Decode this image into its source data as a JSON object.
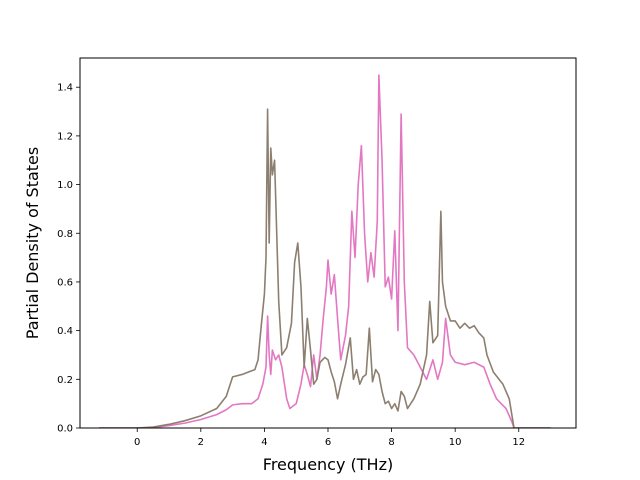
{
  "chart_data": {
    "type": "line",
    "xlabel": "Frequency (THz)",
    "ylabel": "Partial Density of States",
    "xlim": [
      -1.8,
      13.8
    ],
    "ylim": [
      0.0,
      1.52
    ],
    "xticks": [
      0,
      2,
      4,
      6,
      8,
      10,
      12
    ],
    "xtick_labels": [
      "0",
      "2",
      "4",
      "6",
      "8",
      "10",
      "12"
    ],
    "yticks": [
      0.0,
      0.2,
      0.4,
      0.6,
      0.8,
      1.0,
      1.2,
      1.4
    ],
    "ytick_labels": [
      "0.0",
      "0.2",
      "0.4",
      "0.6",
      "0.8",
      "1.0",
      "1.2",
      "1.4"
    ],
    "grid": false,
    "colors": {
      "pink_series": "#e377c2",
      "pink_series_2": "#d470b0",
      "gray_series": "#8c7f70"
    },
    "series": [
      {
        "color": "#e377c2",
        "points": [
          [
            -1.2,
            0
          ],
          [
            0,
            0
          ],
          [
            0.5,
            0.002
          ],
          [
            1,
            0.01
          ],
          [
            1.5,
            0.02
          ],
          [
            2,
            0.035
          ],
          [
            2.5,
            0.055
          ],
          [
            2.8,
            0.075
          ],
          [
            3.0,
            0.095
          ],
          [
            3.3,
            0.1
          ],
          [
            3.6,
            0.1
          ],
          [
            3.8,
            0.12
          ],
          [
            3.95,
            0.18
          ],
          [
            4.05,
            0.25
          ],
          [
            4.1,
            0.46
          ],
          [
            4.15,
            0.3
          ],
          [
            4.2,
            0.22
          ],
          [
            4.25,
            0.32
          ],
          [
            4.35,
            0.28
          ],
          [
            4.45,
            0.3
          ],
          [
            4.55,
            0.25
          ],
          [
            4.7,
            0.12
          ],
          [
            4.8,
            0.08
          ],
          [
            5.0,
            0.1
          ],
          [
            5.15,
            0.18
          ],
          [
            5.25,
            0.26
          ],
          [
            5.35,
            0.22
          ],
          [
            5.45,
            0.17
          ],
          [
            5.55,
            0.3
          ],
          [
            5.65,
            0.2
          ],
          [
            5.75,
            0.3
          ],
          [
            5.85,
            0.45
          ],
          [
            5.95,
            0.58
          ],
          [
            6.0,
            0.69
          ],
          [
            6.1,
            0.55
          ],
          [
            6.2,
            0.63
          ],
          [
            6.3,
            0.45
          ],
          [
            6.4,
            0.28
          ],
          [
            6.55,
            0.38
          ],
          [
            6.65,
            0.5
          ],
          [
            6.75,
            0.89
          ],
          [
            6.85,
            0.7
          ],
          [
            6.95,
            1.0
          ],
          [
            7.05,
            1.16
          ],
          [
            7.15,
            0.8
          ],
          [
            7.25,
            0.6
          ],
          [
            7.35,
            0.72
          ],
          [
            7.45,
            0.62
          ],
          [
            7.55,
            0.85
          ],
          [
            7.6,
            1.45
          ],
          [
            7.7,
            1.1
          ],
          [
            7.8,
            0.58
          ],
          [
            7.9,
            0.62
          ],
          [
            8.0,
            0.53
          ],
          [
            8.1,
            0.81
          ],
          [
            8.2,
            0.4
          ],
          [
            8.3,
            1.29
          ],
          [
            8.4,
            0.6
          ],
          [
            8.5,
            0.33
          ],
          [
            8.7,
            0.3
          ],
          [
            8.9,
            0.25
          ],
          [
            9.1,
            0.2
          ],
          [
            9.3,
            0.28
          ],
          [
            9.45,
            0.2
          ],
          [
            9.6,
            0.27
          ],
          [
            9.7,
            0.45
          ],
          [
            9.85,
            0.3
          ],
          [
            10.0,
            0.27
          ],
          [
            10.3,
            0.26
          ],
          [
            10.6,
            0.27
          ],
          [
            10.9,
            0.25
          ],
          [
            11.1,
            0.18
          ],
          [
            11.3,
            0.12
          ],
          [
            11.6,
            0.08
          ],
          [
            11.8,
            0.02
          ],
          [
            11.85,
            0
          ],
          [
            13,
            0
          ]
        ]
      },
      {
        "color": "#8c7f70",
        "points": [
          [
            -1.2,
            0
          ],
          [
            0,
            0
          ],
          [
            0.5,
            0.004
          ],
          [
            1,
            0.015
          ],
          [
            1.5,
            0.03
          ],
          [
            2,
            0.05
          ],
          [
            2.5,
            0.08
          ],
          [
            2.8,
            0.13
          ],
          [
            3.0,
            0.21
          ],
          [
            3.3,
            0.22
          ],
          [
            3.5,
            0.23
          ],
          [
            3.7,
            0.24
          ],
          [
            3.8,
            0.28
          ],
          [
            3.9,
            0.42
          ],
          [
            4.0,
            0.55
          ],
          [
            4.05,
            0.7
          ],
          [
            4.1,
            1.31
          ],
          [
            4.15,
            0.76
          ],
          [
            4.2,
            1.15
          ],
          [
            4.25,
            1.04
          ],
          [
            4.32,
            1.1
          ],
          [
            4.45,
            0.52
          ],
          [
            4.55,
            0.3
          ],
          [
            4.7,
            0.33
          ],
          [
            4.85,
            0.43
          ],
          [
            4.95,
            0.68
          ],
          [
            5.05,
            0.76
          ],
          [
            5.15,
            0.58
          ],
          [
            5.25,
            0.25
          ],
          [
            5.35,
            0.45
          ],
          [
            5.45,
            0.32
          ],
          [
            5.55,
            0.18
          ],
          [
            5.65,
            0.2
          ],
          [
            5.75,
            0.27
          ],
          [
            5.9,
            0.29
          ],
          [
            6.0,
            0.28
          ],
          [
            6.1,
            0.23
          ],
          [
            6.2,
            0.19
          ],
          [
            6.3,
            0.12
          ],
          [
            6.4,
            0.18
          ],
          [
            6.55,
            0.26
          ],
          [
            6.7,
            0.37
          ],
          [
            6.8,
            0.2
          ],
          [
            6.9,
            0.24
          ],
          [
            7.0,
            0.18
          ],
          [
            7.1,
            0.21
          ],
          [
            7.2,
            0.22
          ],
          [
            7.3,
            0.41
          ],
          [
            7.4,
            0.19
          ],
          [
            7.5,
            0.24
          ],
          [
            7.6,
            0.22
          ],
          [
            7.7,
            0.15
          ],
          [
            7.8,
            0.1
          ],
          [
            7.9,
            0.11
          ],
          [
            8.0,
            0.08
          ],
          [
            8.1,
            0.1
          ],
          [
            8.2,
            0.07
          ],
          [
            8.3,
            0.15
          ],
          [
            8.4,
            0.13
          ],
          [
            8.5,
            0.08
          ],
          [
            8.7,
            0.12
          ],
          [
            8.9,
            0.18
          ],
          [
            9.0,
            0.24
          ],
          [
            9.1,
            0.3
          ],
          [
            9.2,
            0.52
          ],
          [
            9.3,
            0.35
          ],
          [
            9.45,
            0.38
          ],
          [
            9.55,
            0.89
          ],
          [
            9.6,
            0.6
          ],
          [
            9.7,
            0.5
          ],
          [
            9.85,
            0.44
          ],
          [
            10.0,
            0.44
          ],
          [
            10.15,
            0.41
          ],
          [
            10.3,
            0.43
          ],
          [
            10.45,
            0.41
          ],
          [
            10.6,
            0.42
          ],
          [
            10.75,
            0.39
          ],
          [
            10.9,
            0.37
          ],
          [
            11.0,
            0.3
          ],
          [
            11.2,
            0.23
          ],
          [
            11.5,
            0.18
          ],
          [
            11.7,
            0.12
          ],
          [
            11.85,
            0
          ],
          [
            13,
            0
          ]
        ]
      }
    ]
  }
}
